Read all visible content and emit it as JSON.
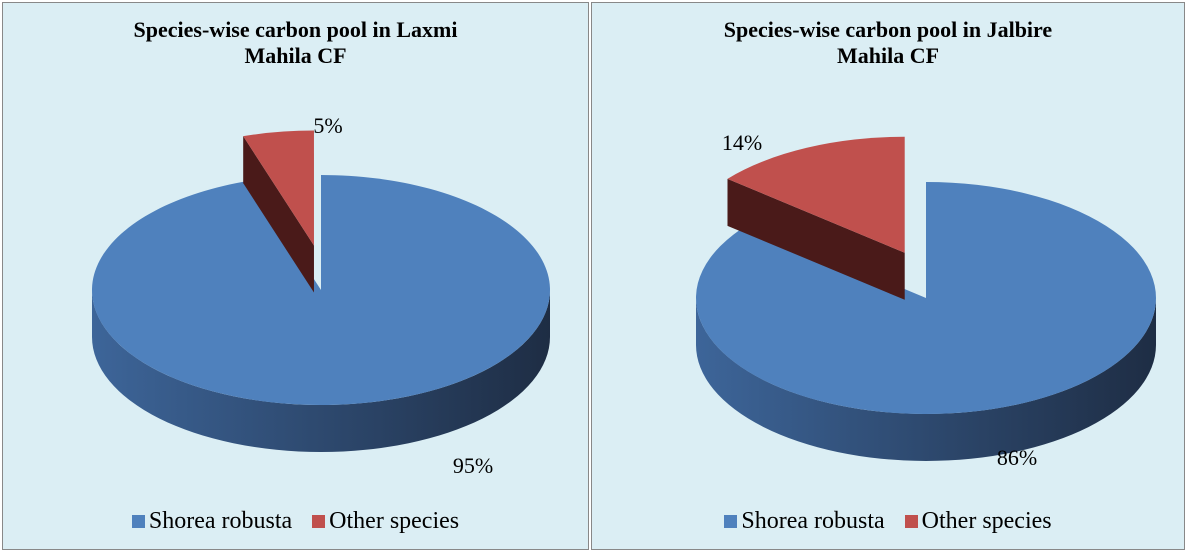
{
  "chart_data": [
    {
      "type": "pie",
      "title": "Species-wise carbon pool in Laxmi Mahila CF",
      "categories": [
        "Shorea robusta",
        "Other species"
      ],
      "values": [
        95,
        5
      ],
      "value_labels": [
        "95%",
        "5%"
      ],
      "colors": [
        "#4f81bd",
        "#c0504d"
      ],
      "legend": "bottom"
    },
    {
      "type": "pie",
      "title": "Species-wise carbon pool in Jalbire Mahila CF",
      "categories": [
        "Shorea robusta",
        "Other species"
      ],
      "values": [
        86,
        14
      ],
      "value_labels": [
        "86%",
        "14%"
      ],
      "colors": [
        "#4f81bd",
        "#c0504d"
      ],
      "legend": "bottom"
    }
  ]
}
